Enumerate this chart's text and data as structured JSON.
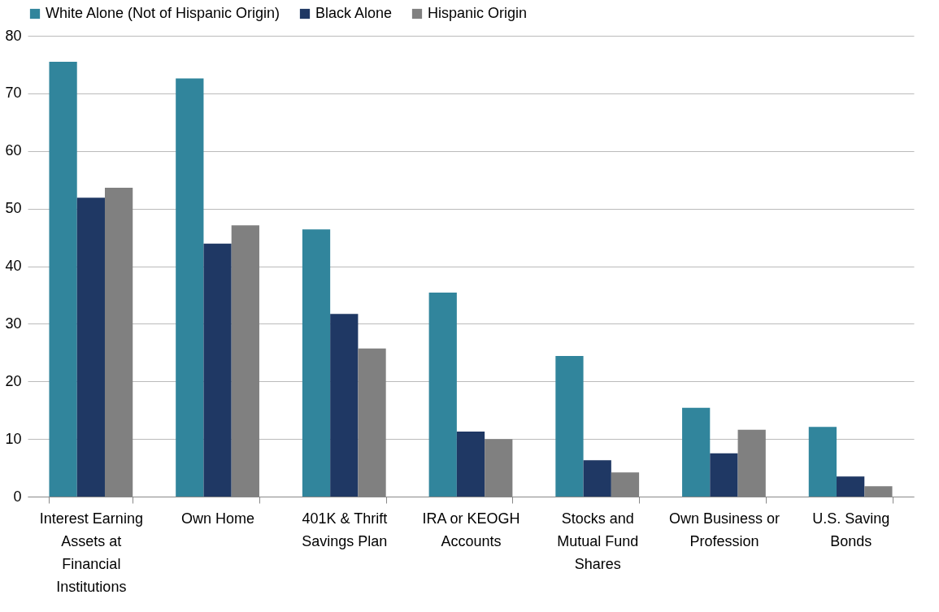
{
  "chart_data": {
    "type": "bar",
    "categories": [
      "Interest Earning Assets at Financial Institutions",
      "Own Home",
      "401K & Thrift Savings Plan",
      "IRA or KEOGH Accounts",
      "Stocks and Mutual Fund Shares",
      "Own Business or Profession",
      "U.S. Saving Bonds"
    ],
    "series": [
      {
        "name": "White Alone (Not of Hispanic Origin)",
        "color": "#31859c",
        "values": [
          75.5,
          72.6,
          46.4,
          35.4,
          24.4,
          15.4,
          12.1
        ]
      },
      {
        "name": "Black Alone",
        "color": "#1f3864",
        "values": [
          51.9,
          43.9,
          31.7,
          11.3,
          6.3,
          7.5,
          3.5
        ]
      },
      {
        "name": "Hispanic Origin",
        "color": "#808080",
        "values": [
          53.6,
          47.1,
          25.7,
          10.0,
          4.2,
          11.6,
          1.8
        ]
      }
    ],
    "ylim": [
      0,
      80
    ],
    "yticks": [
      0,
      10,
      20,
      30,
      40,
      50,
      60,
      70,
      80
    ],
    "grid": "y",
    "legend": "top"
  }
}
